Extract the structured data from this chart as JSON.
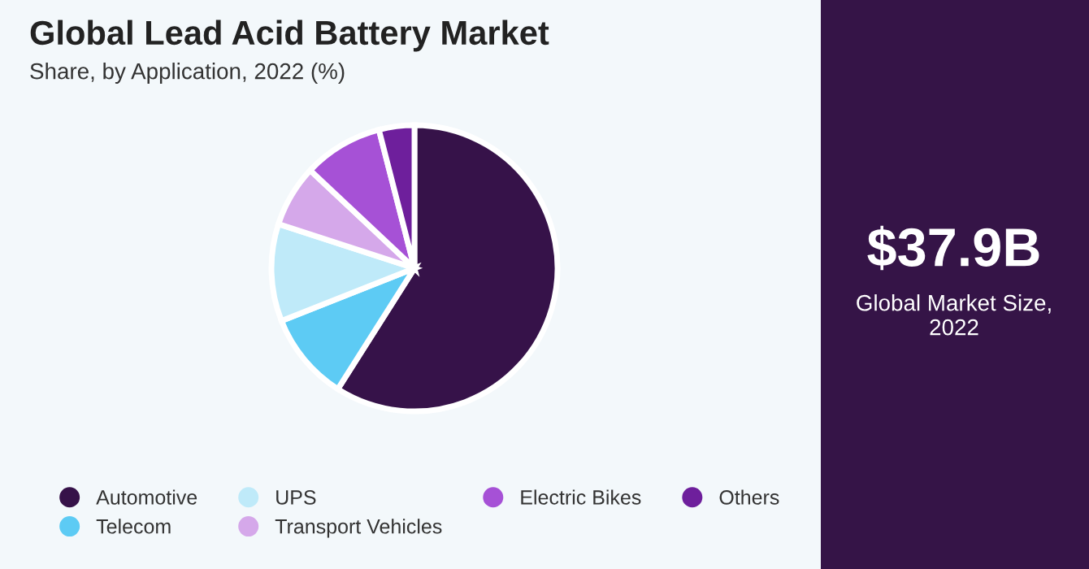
{
  "chart_data": {
    "type": "pie",
    "title": "Global Lead Acid Battery Market",
    "subtitle": "Share, by Application, 2022 (%)",
    "categories": [
      "Automotive",
      "Telecom",
      "UPS",
      "Transport Vehicles",
      "Electric Bikes",
      "Others"
    ],
    "values": [
      59,
      10,
      11,
      7,
      9,
      4
    ],
    "colors": [
      "#361249",
      "#5dcbf4",
      "#bfeaf9",
      "#d5a8ea",
      "#a651d6",
      "#6e1f9c"
    ],
    "legend": "bottom",
    "annotations": [
      "$37.9B",
      "Global Market Size, 2022"
    ]
  }
}
